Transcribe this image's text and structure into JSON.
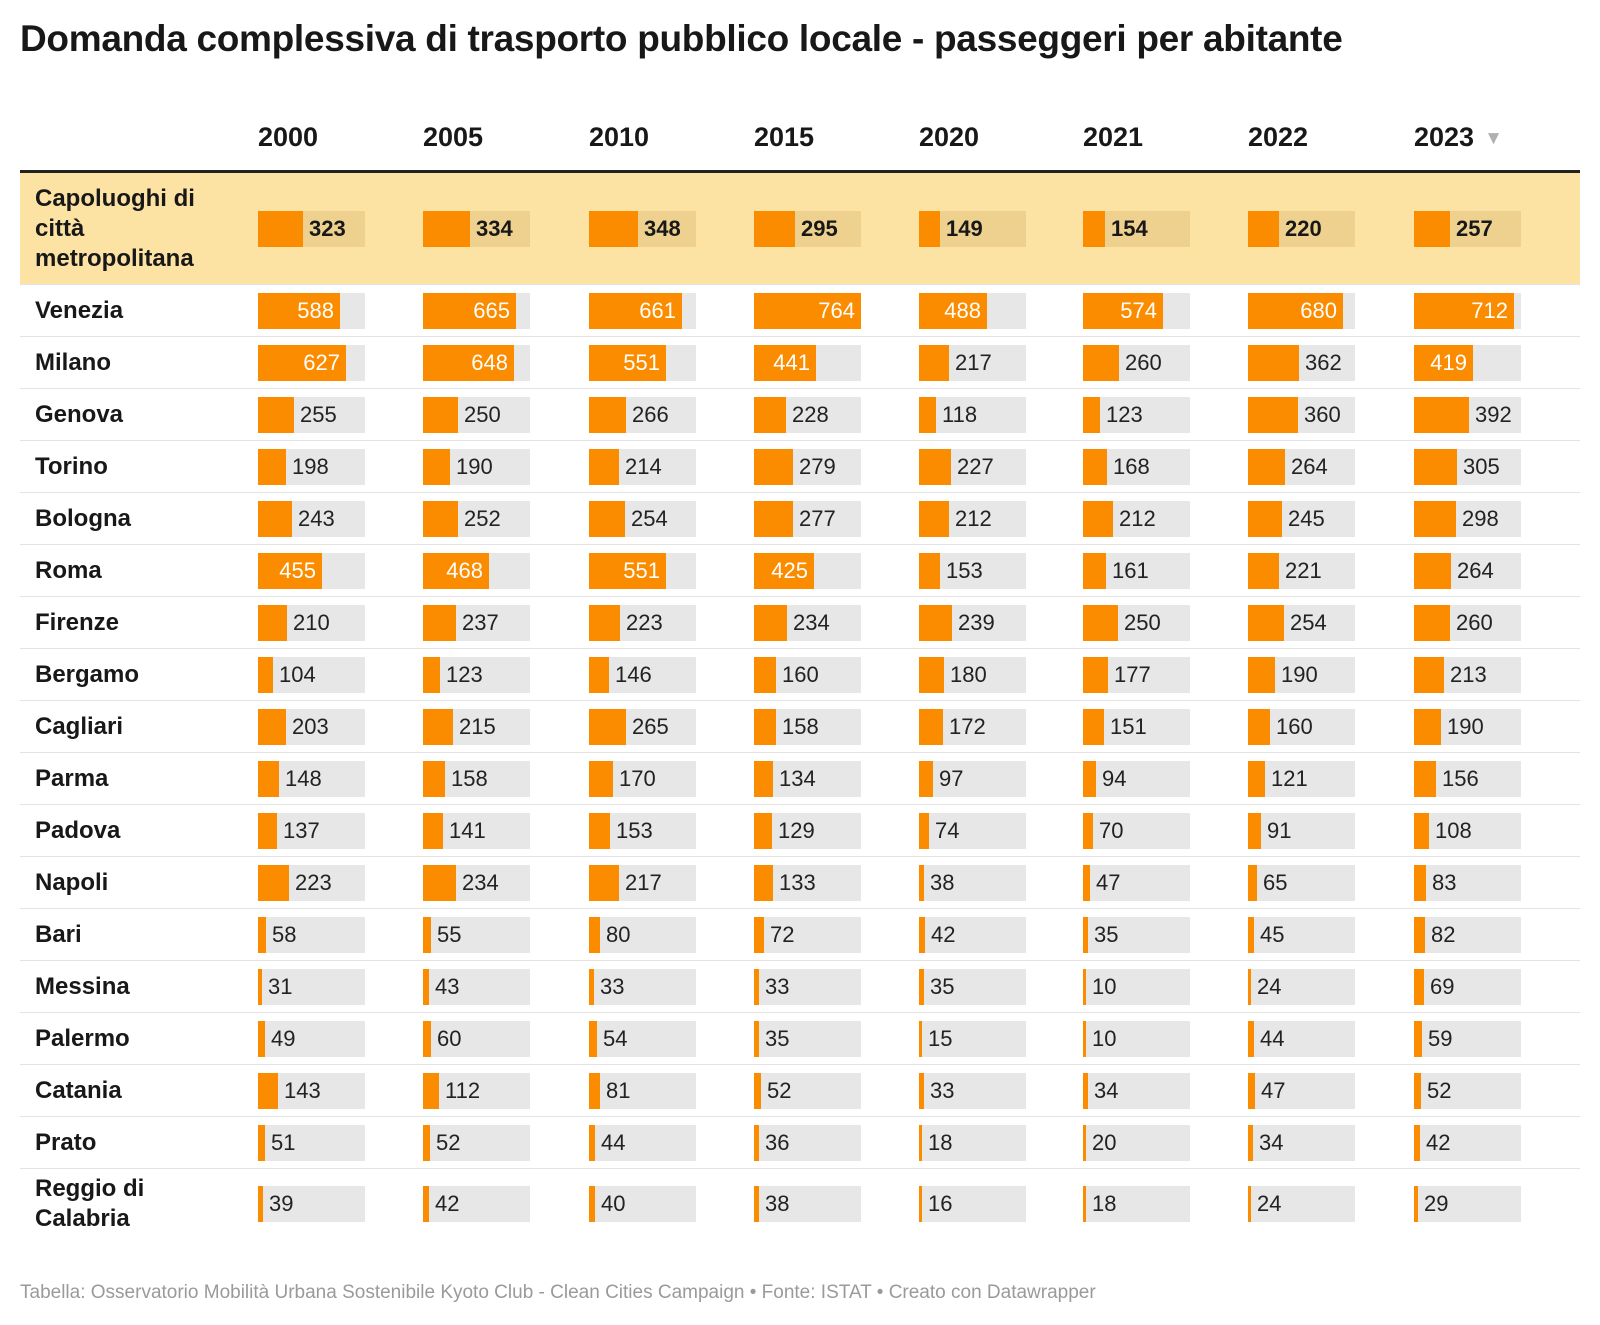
{
  "title": "Domanda complessiva di trasporto pubblico locale - passeggeri per abitante",
  "footer": "Tabella: Osservatorio Mobilità Urbana Sostenibile Kyoto Club - Clean Cities Campaign • Fonte: ISTAT • Creato con Datawrapper",
  "colors": {
    "bar": "#fb8c00",
    "bar_track": "#e7e7e7",
    "highlight_row": "#fde3a3",
    "highlight_track": "#eed18f"
  },
  "sort_icon": "triangle-down-icon",
  "chart_data": {
    "type": "table",
    "title": "Domanda complessiva di trasporto pubblico locale - passeggeri per abitante",
    "columns": [
      "2000",
      "2005",
      "2010",
      "2015",
      "2020",
      "2021",
      "2022",
      "2023"
    ],
    "sorted_by": "2023",
    "sort_order": "descending",
    "bar_max": 764,
    "rows": [
      {
        "name": "Capoluoghi di città metropolitana",
        "values": [
          323,
          334,
          348,
          295,
          149,
          154,
          220,
          257
        ],
        "highlight": true
      },
      {
        "name": "Venezia",
        "values": [
          588,
          665,
          661,
          764,
          488,
          574,
          680,
          712
        ]
      },
      {
        "name": "Milano",
        "values": [
          627,
          648,
          551,
          441,
          217,
          260,
          362,
          419
        ]
      },
      {
        "name": "Genova",
        "values": [
          255,
          250,
          266,
          228,
          118,
          123,
          360,
          392
        ]
      },
      {
        "name": "Torino",
        "values": [
          198,
          190,
          214,
          279,
          227,
          168,
          264,
          305
        ]
      },
      {
        "name": "Bologna",
        "values": [
          243,
          252,
          254,
          277,
          212,
          212,
          245,
          298
        ]
      },
      {
        "name": "Roma",
        "values": [
          455,
          468,
          551,
          425,
          153,
          161,
          221,
          264
        ]
      },
      {
        "name": "Firenze",
        "values": [
          210,
          237,
          223,
          234,
          239,
          250,
          254,
          260
        ]
      },
      {
        "name": "Bergamo",
        "values": [
          104,
          123,
          146,
          160,
          180,
          177,
          190,
          213
        ]
      },
      {
        "name": "Cagliari",
        "values": [
          203,
          215,
          265,
          158,
          172,
          151,
          160,
          190
        ]
      },
      {
        "name": "Parma",
        "values": [
          148,
          158,
          170,
          134,
          97,
          94,
          121,
          156
        ]
      },
      {
        "name": "Padova",
        "values": [
          137,
          141,
          153,
          129,
          74,
          70,
          91,
          108
        ]
      },
      {
        "name": "Napoli",
        "values": [
          223,
          234,
          217,
          133,
          38,
          47,
          65,
          83
        ]
      },
      {
        "name": "Bari",
        "values": [
          58,
          55,
          80,
          72,
          42,
          35,
          45,
          82
        ]
      },
      {
        "name": "Messina",
        "values": [
          31,
          43,
          33,
          33,
          35,
          10,
          24,
          69
        ]
      },
      {
        "name": "Palermo",
        "values": [
          49,
          60,
          54,
          35,
          15,
          10,
          44,
          59
        ]
      },
      {
        "name": "Catania",
        "values": [
          143,
          112,
          81,
          52,
          33,
          34,
          47,
          52
        ]
      },
      {
        "name": "Prato",
        "values": [
          51,
          52,
          44,
          36,
          18,
          20,
          34,
          42
        ]
      },
      {
        "name": "Reggio di Calabria",
        "values": [
          39,
          42,
          40,
          38,
          16,
          18,
          24,
          29
        ]
      }
    ]
  }
}
